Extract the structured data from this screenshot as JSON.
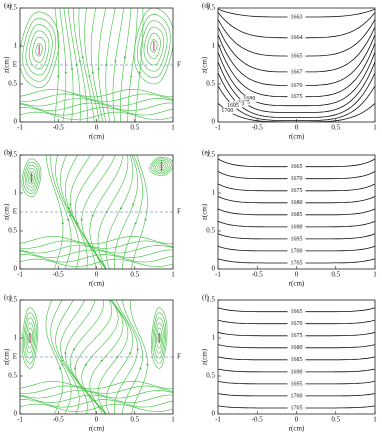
{
  "chart_data": [
    {
      "type": "streamline",
      "panel_label": "(a)",
      "x_label": "r(cm)",
      "y_label": "z(cm)",
      "xlim": [
        -1,
        1
      ],
      "ylim": [
        0,
        1.5
      ],
      "xticks": [
        -1,
        -0.5,
        0,
        0.5,
        1
      ],
      "yticks": [
        0,
        0.5,
        1,
        1.5
      ],
      "annotations": [
        "E",
        "F"
      ]
    },
    {
      "type": "streamline",
      "panel_label": "(b)",
      "x_label": "r(cm)",
      "y_label": "z(cm)",
      "xlim": [
        -1,
        1
      ],
      "ylim": [
        0,
        1.5
      ],
      "xticks": [
        -1,
        -0.5,
        0,
        0.5,
        1
      ],
      "yticks": [
        0,
        0.5,
        1,
        1.5
      ],
      "annotations": [
        "E",
        "F"
      ]
    },
    {
      "type": "streamline",
      "panel_label": "(c)",
      "x_label": "r(cm)",
      "y_label": "z(cm)",
      "xlim": [
        -1,
        1
      ],
      "ylim": [
        0,
        1.5
      ],
      "xticks": [
        -1,
        -0.5,
        0,
        0.5,
        1
      ],
      "yticks": [
        0,
        0.5,
        1,
        1.5
      ],
      "annotations": [
        "E",
        "F"
      ]
    },
    {
      "type": "contour",
      "panel_label": "(d)",
      "x_label": "r(cm)",
      "y_label": "z(cm)",
      "xlim": [
        -1,
        1
      ],
      "ylim": [
        0,
        1.5
      ],
      "xticks": [
        -1,
        -0.5,
        0,
        0.5,
        1
      ],
      "yticks": [
        0,
        0.5,
        1,
        1.5
      ],
      "levels": [
        1663,
        1664,
        1665,
        1667,
        1670,
        1675,
        1680,
        1685,
        1690,
        1695,
        1700
      ]
    },
    {
      "type": "contour",
      "panel_label": "(e)",
      "x_label": "r(cm)",
      "y_label": "z(cm)",
      "xlim": [
        -1,
        1
      ],
      "ylim": [
        0,
        1.5
      ],
      "xticks": [
        -1,
        -0.5,
        0,
        0.5,
        1
      ],
      "yticks": [
        0,
        0.5,
        1,
        1.5
      ],
      "levels": [
        1665,
        1670,
        1675,
        1680,
        1685,
        1690,
        1695,
        1700,
        1705
      ]
    },
    {
      "type": "contour",
      "panel_label": "(f)",
      "x_label": "r(cm)",
      "y_label": "z(cm)",
      "xlim": [
        -1,
        1
      ],
      "ylim": [
        0,
        1.5
      ],
      "xticks": [
        -1,
        -0.5,
        0,
        0.5,
        1
      ],
      "yticks": [
        0,
        0.5,
        1,
        1.5
      ],
      "levels": [
        1665,
        1670,
        1675,
        1680,
        1685,
        1690,
        1695,
        1700,
        1705
      ]
    }
  ]
}
